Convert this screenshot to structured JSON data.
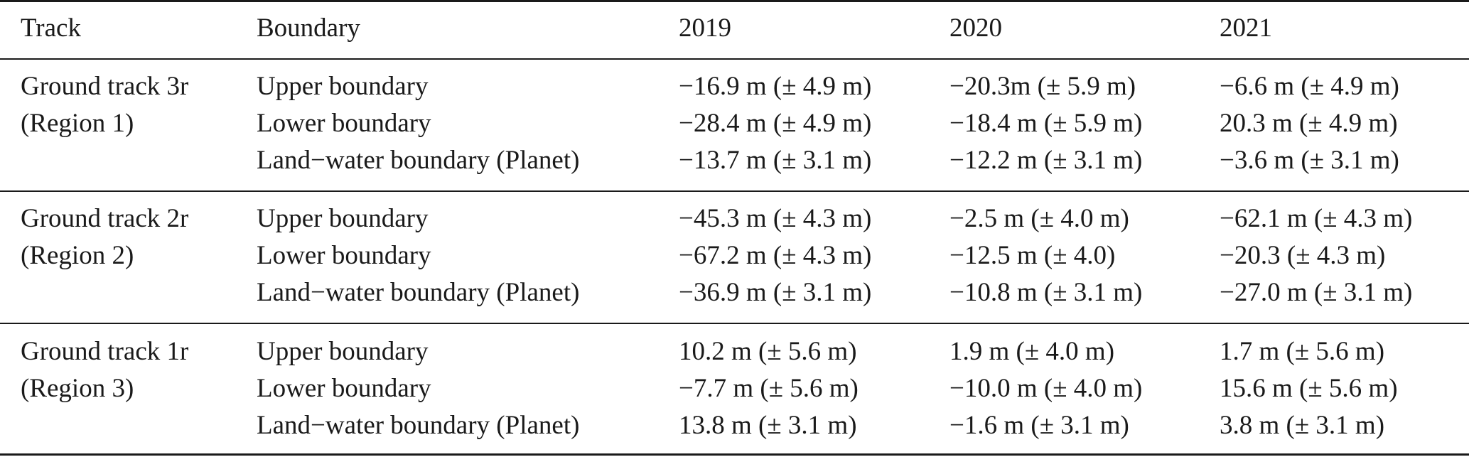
{
  "table": {
    "headers": {
      "track": "Track",
      "boundary": "Boundary",
      "y2019": "2019",
      "y2020": "2020",
      "y2021": "2021"
    },
    "groups": [
      {
        "track_line1": "Ground track 3r",
        "track_line2": "(Region 1)",
        "rows": [
          {
            "boundary": "Upper boundary",
            "y2019": "−16.9 m (± 4.9 m)",
            "y2020": "−20.3m (± 5.9 m)",
            "y2021": "−6.6 m (± 4.9 m)"
          },
          {
            "boundary": "Lower boundary",
            "y2019": "−28.4 m (± 4.9 m)",
            "y2020": "−18.4 m (± 5.9 m)",
            "y2021": "20.3 m (± 4.9 m)"
          },
          {
            "boundary": "Land−water boundary (Planet)",
            "y2019": "−13.7 m (± 3.1 m)",
            "y2020": "−12.2 m (± 3.1 m)",
            "y2021": "−3.6 m (± 3.1 m)"
          }
        ]
      },
      {
        "track_line1": "Ground track 2r",
        "track_line2": "(Region 2)",
        "rows": [
          {
            "boundary": "Upper boundary",
            "y2019": "−45.3 m (± 4.3 m)",
            "y2020": "−2.5 m (± 4.0 m)",
            "y2021": "−62.1 m (± 4.3 m)"
          },
          {
            "boundary": "Lower boundary",
            "y2019": "−67.2 m (± 4.3 m)",
            "y2020": "−12.5 m (± 4.0)",
            "y2021": "−20.3 (± 4.3 m)"
          },
          {
            "boundary": "Land−water boundary (Planet)",
            "y2019": "−36.9 m (± 3.1 m)",
            "y2020": "−10.8 m (± 3.1 m)",
            "y2021": "−27.0 m (± 3.1 m)"
          }
        ]
      },
      {
        "track_line1": "Ground track 1r",
        "track_line2": "(Region 3)",
        "rows": [
          {
            "boundary": "Upper boundary",
            "y2019": "10.2 m (± 5.6 m)",
            "y2020": "1.9 m (± 4.0 m)",
            "y2021": "1.7 m (± 5.6 m)"
          },
          {
            "boundary": "Lower boundary",
            "y2019": "−7.7 m (± 5.6 m)",
            "y2020": "−10.0 m (± 4.0 m)",
            "y2021": "15.6 m (± 5.6 m)"
          },
          {
            "boundary": "Land−water boundary (Planet)",
            "y2019": "13.8 m (± 3.1 m)",
            "y2020": "−1.6 m (± 3.1 m)",
            "y2021": "3.8 m (± 3.1 m)"
          }
        ]
      }
    ]
  }
}
